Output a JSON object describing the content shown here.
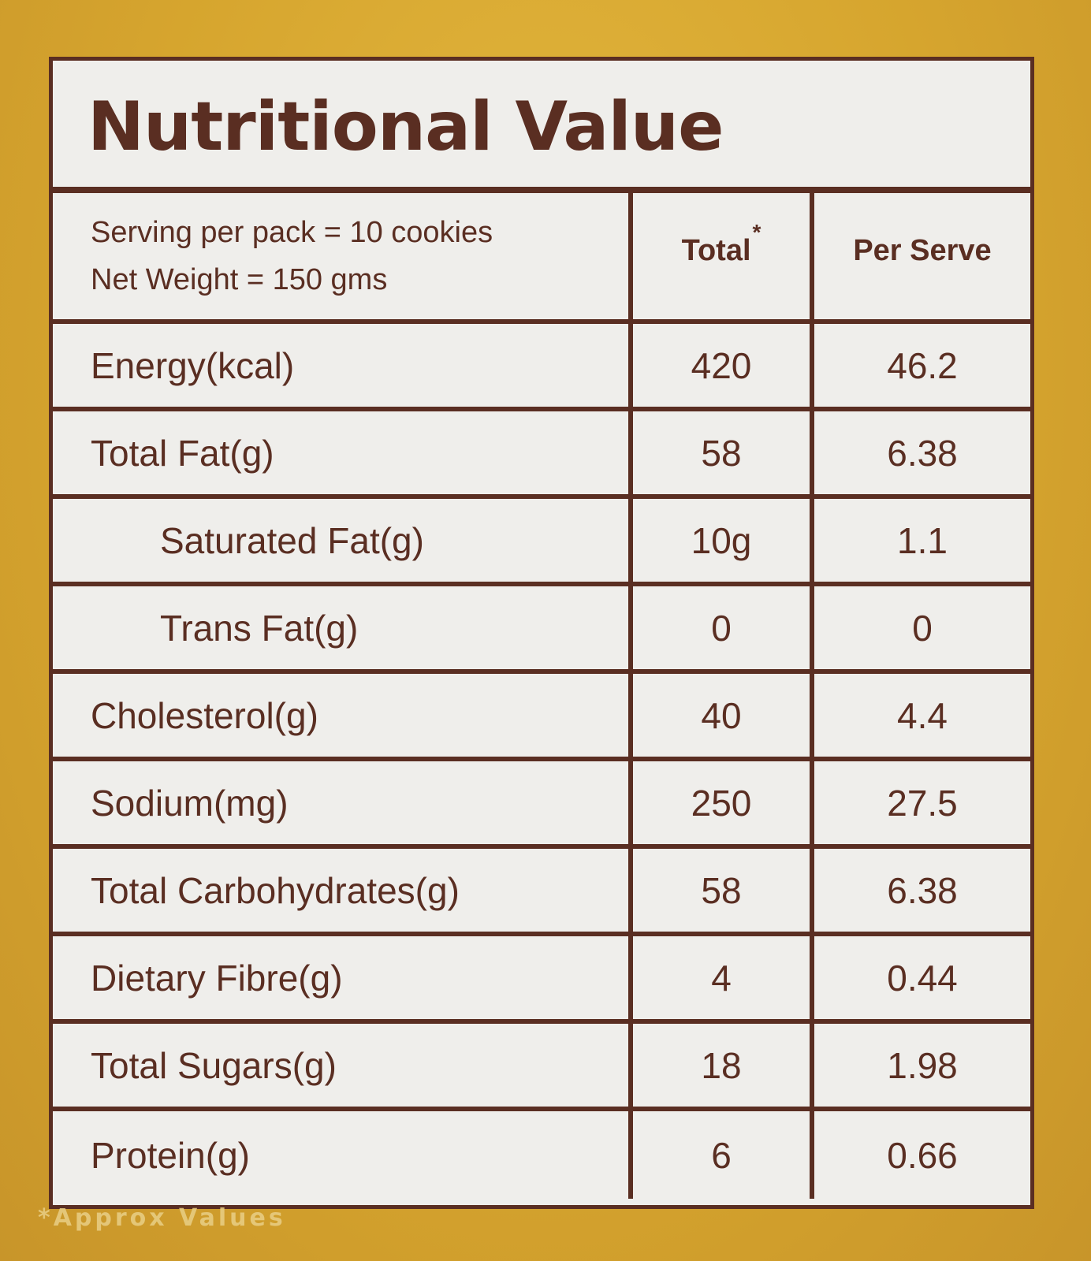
{
  "title": "Nutritional Value",
  "header": {
    "serving_line": "Serving per pack = 10 cookies",
    "weight_line": "Net Weight = 150 gms",
    "col_total": "Total",
    "col_total_mark": "*",
    "col_per_serve": "Per Serve"
  },
  "rows": [
    {
      "label": "Energy(kcal)",
      "total": "420",
      "per_serve": "46.2",
      "indent": false
    },
    {
      "label": "Total Fat(g)",
      "total": "58",
      "per_serve": "6.38",
      "indent": false
    },
    {
      "label": "Saturated Fat(g)",
      "total": "10g",
      "per_serve": "1.1",
      "indent": true
    },
    {
      "label": "Trans Fat(g)",
      "total": "0",
      "per_serve": "0",
      "indent": true
    },
    {
      "label": "Cholesterol(g)",
      "total": "40",
      "per_serve": "4.4",
      "indent": false
    },
    {
      "label": "Sodium(mg)",
      "total": "250",
      "per_serve": "27.5",
      "indent": false
    },
    {
      "label": "Total Carbohydrates(g)",
      "total": "58",
      "per_serve": "6.38",
      "indent": false
    },
    {
      "label": "Dietary Fibre(g)",
      "total": "4",
      "per_serve": "0.44",
      "indent": false
    },
    {
      "label": "Total Sugars(g)",
      "total": "18",
      "per_serve": "1.98",
      "indent": false
    },
    {
      "label": "Protein(g)",
      "total": "6",
      "per_serve": "0.66",
      "indent": false
    }
  ],
  "footnote": "*Approx Values",
  "colors": {
    "ink": "#5a2e22",
    "panel": "#efeeeb",
    "package": "#d6a52e"
  }
}
